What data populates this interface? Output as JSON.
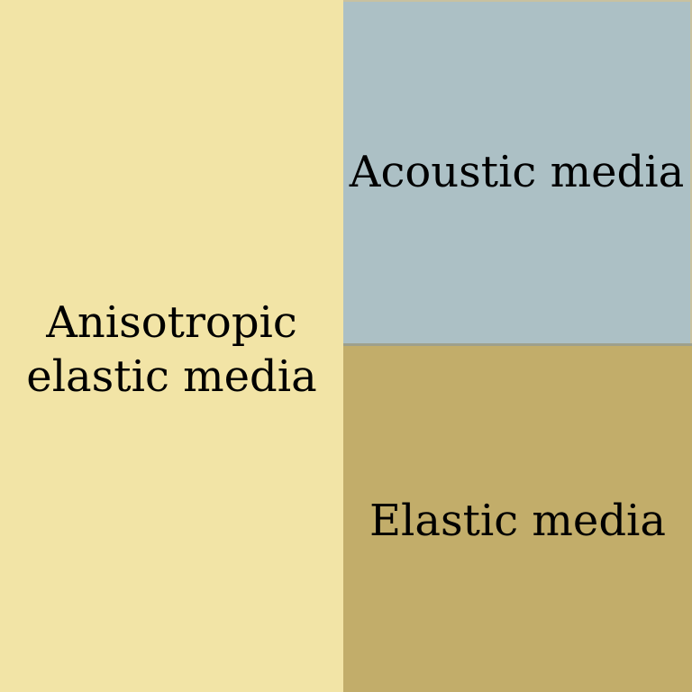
{
  "colors": {
    "anisotropic_elastic": "#f2e4a6",
    "acoustic": "#acc0c5",
    "elastic": "#c2ad6a",
    "divider": "#9ea08c"
  },
  "regions": {
    "left": {
      "line1": "Anisotropic",
      "line2": "elastic media"
    },
    "top_right": {
      "label": "Acoustic media"
    },
    "bottom_right": {
      "label": "Elastic media"
    }
  }
}
